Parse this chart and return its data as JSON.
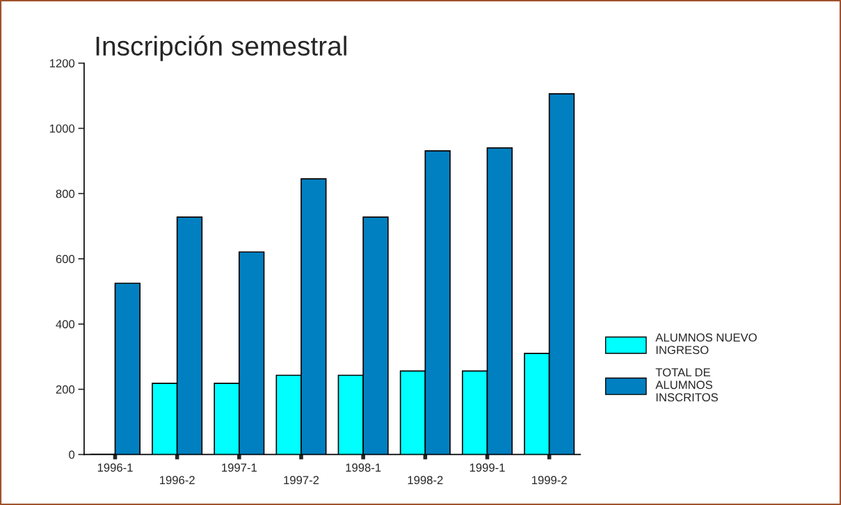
{
  "chart_data": {
    "type": "bar",
    "title": "Inscripción semestral",
    "categories": [
      "1996-1",
      "1996-2",
      "1997-1",
      "1997-2",
      "1998-1",
      "1998-2",
      "1999-1",
      "1999-2"
    ],
    "series": [
      {
        "name": "ALUMNOS NUEVO INGRESO",
        "color": "#00ffff",
        "values": [
          0,
          218,
          218,
          243,
          243,
          256,
          256,
          310
        ]
      },
      {
        "name": "TOTAL DE ALUMNOS INSCRITOS",
        "color": "#0080c0",
        "values": [
          525,
          728,
          621,
          845,
          728,
          931,
          940,
          1106
        ]
      }
    ],
    "ylim": [
      0,
      1200
    ],
    "yticks": [
      0,
      200,
      400,
      600,
      800,
      1000,
      1200
    ],
    "grid": false,
    "legend": "right"
  }
}
